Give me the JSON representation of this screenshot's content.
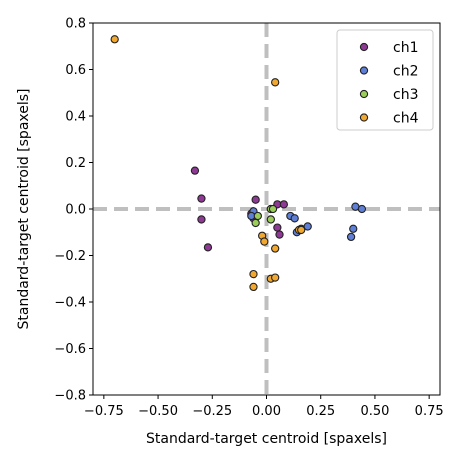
{
  "chart_data": {
    "type": "scatter",
    "title": "",
    "xlabel": "Standard-target centroid [spaxels]",
    "ylabel": "Standard-target centroid [spaxels]",
    "xlim": [
      -0.8,
      0.8
    ],
    "ylim": [
      -0.8,
      0.8
    ],
    "xticks": [
      "−0.75",
      "−0.50",
      "−0.25",
      "0.00",
      "0.25",
      "0.50",
      "0.75"
    ],
    "xtick_values": [
      -0.75,
      -0.5,
      -0.25,
      0.0,
      0.25,
      0.5,
      0.75
    ],
    "yticks": [
      "−0.8",
      "−0.6",
      "−0.4",
      "−0.2",
      "0.0",
      "0.2",
      "0.4",
      "0.6",
      "0.8"
    ],
    "ytick_values": [
      -0.8,
      -0.6,
      -0.4,
      -0.2,
      0.0,
      0.2,
      0.4,
      0.6,
      0.8
    ],
    "grid": false,
    "reference_lines": {
      "x": 0.0,
      "y": 0.0,
      "color": "#bfbfbf",
      "style": "dashed"
    },
    "legend_position": "top-right",
    "series": [
      {
        "name": "ch1",
        "color": "#8e3a94",
        "points": [
          [
            -0.33,
            0.165
          ],
          [
            -0.3,
            0.045
          ],
          [
            -0.3,
            -0.045
          ],
          [
            -0.27,
            -0.165
          ],
          [
            -0.05,
            0.04
          ],
          [
            -0.07,
            -0.02
          ],
          [
            -0.06,
            -0.04
          ],
          [
            0.05,
            0.02
          ],
          [
            0.08,
            0.02
          ],
          [
            0.05,
            -0.08
          ],
          [
            0.06,
            -0.11
          ],
          [
            0.02,
            0.0
          ]
        ]
      },
      {
        "name": "ch2",
        "color": "#5f7fd6",
        "points": [
          [
            -0.06,
            -0.01
          ],
          [
            0.11,
            -0.03
          ],
          [
            0.13,
            -0.04
          ],
          [
            0.14,
            -0.1
          ],
          [
            0.16,
            -0.085
          ],
          [
            0.19,
            -0.075
          ],
          [
            0.41,
            0.01
          ],
          [
            0.44,
            0.0
          ],
          [
            0.4,
            -0.085
          ],
          [
            0.39,
            -0.12
          ],
          [
            -0.07,
            -0.03
          ]
        ]
      },
      {
        "name": "ch3",
        "color": "#9acd5a",
        "points": [
          [
            -0.04,
            -0.03
          ],
          [
            -0.05,
            -0.06
          ],
          [
            0.02,
            0.0
          ],
          [
            0.03,
            0.0
          ],
          [
            0.02,
            -0.045
          ]
        ]
      },
      {
        "name": "ch4",
        "color": "#f0a830",
        "points": [
          [
            -0.7,
            0.73
          ],
          [
            0.04,
            0.545
          ],
          [
            -0.02,
            -0.115
          ],
          [
            -0.01,
            -0.14
          ],
          [
            0.04,
            -0.17
          ],
          [
            -0.06,
            -0.28
          ],
          [
            -0.06,
            -0.335
          ],
          [
            0.02,
            -0.3
          ],
          [
            0.04,
            -0.295
          ],
          [
            0.15,
            -0.09
          ],
          [
            0.16,
            -0.09
          ]
        ]
      }
    ]
  }
}
